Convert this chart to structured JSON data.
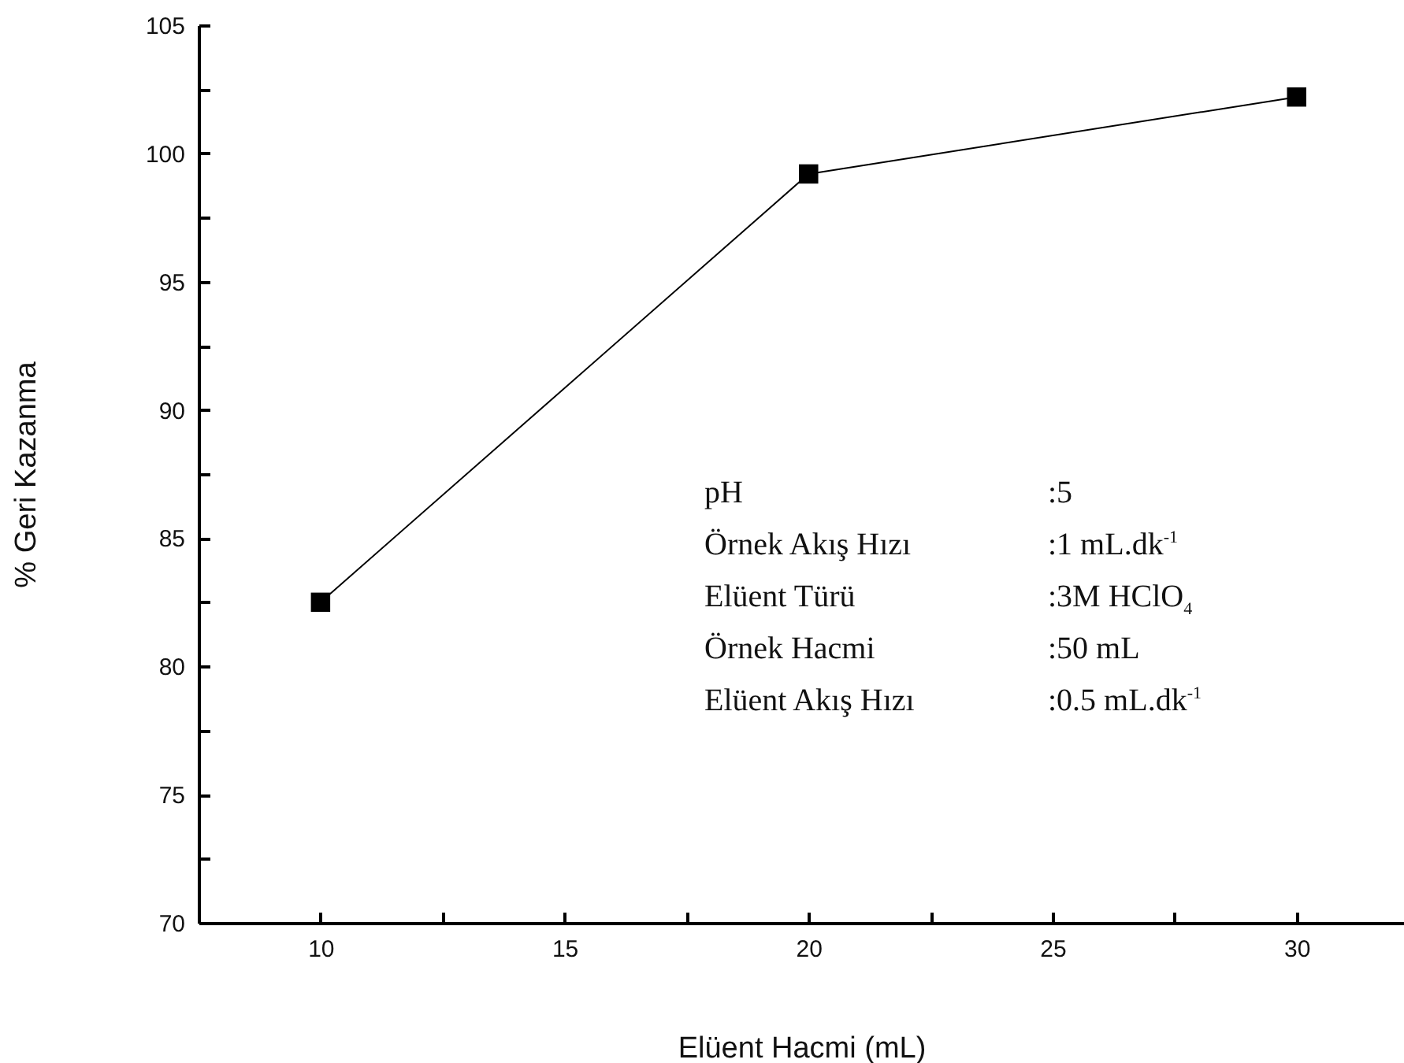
{
  "chart_data": {
    "type": "line",
    "xlabel": "Elüent Hacmi (mL)",
    "ylabel": "% Geri Kazanma",
    "x": [
      10,
      20,
      30
    ],
    "series": [
      {
        "color": "#000000",
        "values": [
          82.5,
          99.2,
          102.2
        ]
      }
    ],
    "xlim": [
      7.5,
      32.2
    ],
    "xticks": [
      10,
      {
        "value": 12.5,
        "label": null
      },
      15,
      {
        "value": 17.5,
        "label": null
      },
      20,
      {
        "value": 22.5,
        "label": null
      },
      25,
      {
        "value": 27.5,
        "label": null
      },
      30
    ],
    "ylim": [
      70,
      105
    ],
    "yticks": [
      70,
      {
        "value": 72.5,
        "label": null
      },
      75,
      {
        "value": 77.5,
        "label": null
      },
      80,
      {
        "value": 82.5,
        "label": null
      },
      85,
      {
        "value": 87.5,
        "label": null
      },
      90,
      {
        "value": 92.5,
        "label": null
      },
      95,
      {
        "value": 97.5,
        "label": null
      },
      100,
      {
        "value": 102.5,
        "label": null
      },
      105
    ],
    "marker": "square",
    "line_style": "solid",
    "grid": false,
    "legend": false,
    "annotations": [
      "pH",
      ":5",
      "Örnek Akış Hızı",
      ":1 mL.dk$^{-1}$",
      "Elüent Türü",
      ":3M HClO$_{4}$",
      "Örnek Hacmi",
      ":50 mL",
      "Elüent Akış Hızı",
      ":0.5 mL.dk$^{-1}$"
    ]
  }
}
